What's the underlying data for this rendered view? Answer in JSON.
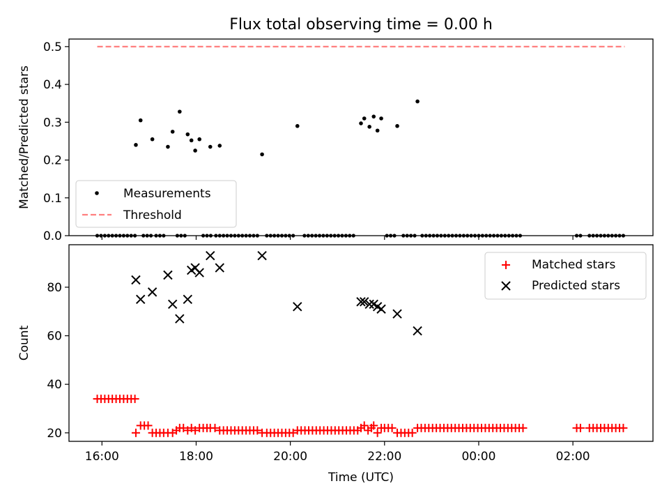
{
  "figure_title": "Flux total observing time = 0.00 h",
  "x_axis": {
    "label": "Time (UTC)",
    "tick_values": [
      16,
      18,
      20,
      22,
      24,
      26
    ],
    "tick_labels": [
      "16:00",
      "18:00",
      "20:00",
      "22:00",
      "00:00",
      "02:00"
    ]
  },
  "colors": {
    "matched": "#ff0000",
    "predicted": "#000000",
    "threshold": "#ff7f7f",
    "measurement": "#000000"
  },
  "chart_data": [
    {
      "type": "scatter",
      "ylabel": "Matched/Predicted stars",
      "xlim": [
        15.3,
        27.7
      ],
      "ylim": [
        0,
        0.52
      ],
      "y_ticks": [
        0.0,
        0.1,
        0.2,
        0.3,
        0.4,
        0.5
      ],
      "y_tick_labels": [
        "0.0",
        "0.1",
        "0.2",
        "0.3",
        "0.4",
        "0.5"
      ],
      "legend": {
        "placement": "lower-left",
        "entries": [
          {
            "label": "Measurements",
            "marker": "dot"
          },
          {
            "label": "Threshold",
            "marker": "dashed-line"
          }
        ]
      },
      "threshold": {
        "y": 0.5,
        "x_range": [
          15.9,
          27.1
        ]
      },
      "series": [
        {
          "name": "Measurements",
          "points": [
            [
              16.72,
              0.24
            ],
            [
              16.82,
              0.305
            ],
            [
              17.07,
              0.255
            ],
            [
              17.4,
              0.235
            ],
            [
              17.5,
              0.275
            ],
            [
              17.65,
              0.328
            ],
            [
              17.82,
              0.268
            ],
            [
              17.9,
              0.252
            ],
            [
              17.98,
              0.225
            ],
            [
              18.07,
              0.255
            ],
            [
              18.3,
              0.235
            ],
            [
              18.5,
              0.238
            ],
            [
              19.4,
              0.215
            ],
            [
              20.15,
              0.29
            ],
            [
              21.5,
              0.297
            ],
            [
              21.57,
              0.31
            ],
            [
              21.68,
              0.288
            ],
            [
              21.77,
              0.315
            ],
            [
              21.85,
              0.278
            ],
            [
              21.93,
              0.31
            ],
            [
              22.27,
              0.29
            ],
            [
              22.7,
              0.355
            ]
          ],
          "zero_x": [
            15.9,
            15.98,
            16.06,
            16.14,
            16.22,
            16.3,
            16.38,
            16.46,
            16.54,
            16.62,
            16.7,
            16.88,
            16.96,
            17.04,
            17.15,
            17.23,
            17.31,
            17.6,
            17.68,
            17.76,
            18.15,
            18.23,
            18.31,
            18.42,
            18.5,
            18.58,
            18.66,
            18.74,
            18.82,
            18.9,
            18.98,
            19.06,
            19.14,
            19.22,
            19.3,
            19.5,
            19.58,
            19.66,
            19.74,
            19.82,
            19.9,
            19.98,
            20.06,
            20.3,
            20.38,
            20.46,
            20.54,
            20.62,
            20.7,
            20.78,
            20.86,
            20.94,
            21.02,
            21.1,
            21.18,
            21.26,
            21.34,
            22.05,
            22.13,
            22.21,
            22.4,
            22.48,
            22.56,
            22.64,
            22.8,
            22.88,
            22.96,
            23.04,
            23.12,
            23.2,
            23.28,
            23.36,
            23.44,
            23.52,
            23.6,
            23.68,
            23.76,
            23.84,
            23.92,
            24.0,
            24.08,
            24.16,
            24.24,
            24.32,
            24.4,
            24.48,
            24.56,
            24.64,
            24.72,
            24.8,
            24.88,
            26.08,
            26.16,
            26.35,
            26.43,
            26.51,
            26.59,
            26.67,
            26.75,
            26.83,
            26.91,
            26.99,
            27.07
          ]
        }
      ]
    },
    {
      "type": "scatter",
      "ylabel": "Count",
      "xlim": [
        15.3,
        27.7
      ],
      "ylim": [
        16.5,
        97.5
      ],
      "y_ticks": [
        20,
        40,
        60,
        80
      ],
      "y_tick_labels": [
        "20",
        "40",
        "60",
        "80"
      ],
      "legend": {
        "placement": "upper-right",
        "entries": [
          {
            "label": "Matched stars",
            "marker": "plus"
          },
          {
            "label": "Predicted stars",
            "marker": "x"
          }
        ]
      },
      "series": [
        {
          "name": "Matched stars",
          "points": [
            [
              15.9,
              34
            ],
            [
              15.98,
              34
            ],
            [
              16.06,
              34
            ],
            [
              16.14,
              34
            ],
            [
              16.22,
              34
            ],
            [
              16.3,
              34
            ],
            [
              16.38,
              34
            ],
            [
              16.46,
              34
            ],
            [
              16.54,
              34
            ],
            [
              16.62,
              34
            ],
            [
              16.7,
              34
            ],
            [
              16.72,
              20
            ],
            [
              16.82,
              23
            ],
            [
              16.9,
              23
            ],
            [
              16.98,
              23
            ],
            [
              17.07,
              20
            ],
            [
              17.15,
              20
            ],
            [
              17.23,
              20
            ],
            [
              17.31,
              20
            ],
            [
              17.4,
              20
            ],
            [
              17.5,
              20
            ],
            [
              17.58,
              21
            ],
            [
              17.65,
              22
            ],
            [
              17.73,
              22
            ],
            [
              17.82,
              21
            ],
            [
              17.9,
              22
            ],
            [
              17.98,
              21
            ],
            [
              18.07,
              22
            ],
            [
              18.15,
              22
            ],
            [
              18.23,
              22
            ],
            [
              18.3,
              22
            ],
            [
              18.4,
              22
            ],
            [
              18.5,
              21
            ],
            [
              18.58,
              21
            ],
            [
              18.66,
              21
            ],
            [
              18.74,
              21
            ],
            [
              18.82,
              21
            ],
            [
              18.9,
              21
            ],
            [
              18.98,
              21
            ],
            [
              19.06,
              21
            ],
            [
              19.14,
              21
            ],
            [
              19.22,
              21
            ],
            [
              19.3,
              21
            ],
            [
              19.4,
              20
            ],
            [
              19.5,
              20
            ],
            [
              19.58,
              20
            ],
            [
              19.66,
              20
            ],
            [
              19.74,
              20
            ],
            [
              19.82,
              20
            ],
            [
              19.9,
              20
            ],
            [
              19.98,
              20
            ],
            [
              20.06,
              20
            ],
            [
              20.15,
              21
            ],
            [
              20.23,
              21
            ],
            [
              20.31,
              21
            ],
            [
              20.39,
              21
            ],
            [
              20.47,
              21
            ],
            [
              20.55,
              21
            ],
            [
              20.63,
              21
            ],
            [
              20.71,
              21
            ],
            [
              20.79,
              21
            ],
            [
              20.87,
              21
            ],
            [
              20.95,
              21
            ],
            [
              21.03,
              21
            ],
            [
              21.11,
              21
            ],
            [
              21.19,
              21
            ],
            [
              21.27,
              21
            ],
            [
              21.35,
              21
            ],
            [
              21.43,
              21
            ],
            [
              21.5,
              22
            ],
            [
              21.57,
              23
            ],
            [
              21.65,
              21
            ],
            [
              21.72,
              22
            ],
            [
              21.77,
              23
            ],
            [
              21.85,
              20
            ],
            [
              21.93,
              22
            ],
            [
              22.0,
              22
            ],
            [
              22.08,
              22
            ],
            [
              22.16,
              22
            ],
            [
              22.27,
              20
            ],
            [
              22.35,
              20
            ],
            [
              22.43,
              20
            ],
            [
              22.51,
              20
            ],
            [
              22.59,
              20
            ],
            [
              22.7,
              22
            ],
            [
              22.78,
              22
            ],
            [
              22.86,
              22
            ],
            [
              22.94,
              22
            ],
            [
              23.02,
              22
            ],
            [
              23.1,
              22
            ],
            [
              23.18,
              22
            ],
            [
              23.26,
              22
            ],
            [
              23.34,
              22
            ],
            [
              23.42,
              22
            ],
            [
              23.5,
              22
            ],
            [
              23.58,
              22
            ],
            [
              23.66,
              22
            ],
            [
              23.74,
              22
            ],
            [
              23.82,
              22
            ],
            [
              23.9,
              22
            ],
            [
              23.98,
              22
            ],
            [
              24.06,
              22
            ],
            [
              24.14,
              22
            ],
            [
              24.22,
              22
            ],
            [
              24.3,
              22
            ],
            [
              24.38,
              22
            ],
            [
              24.46,
              22
            ],
            [
              24.54,
              22
            ],
            [
              24.62,
              22
            ],
            [
              24.7,
              22
            ],
            [
              24.78,
              22
            ],
            [
              24.86,
              22
            ],
            [
              24.94,
              22
            ],
            [
              26.08,
              22
            ],
            [
              26.16,
              22
            ],
            [
              26.35,
              22
            ],
            [
              26.43,
              22
            ],
            [
              26.51,
              22
            ],
            [
              26.59,
              22
            ],
            [
              26.67,
              22
            ],
            [
              26.75,
              22
            ],
            [
              26.83,
              22
            ],
            [
              26.91,
              22
            ],
            [
              26.99,
              22
            ],
            [
              27.07,
              22
            ]
          ]
        },
        {
          "name": "Predicted stars",
          "points": [
            [
              16.72,
              83
            ],
            [
              16.82,
              75
            ],
            [
              17.07,
              78
            ],
            [
              17.4,
              85
            ],
            [
              17.5,
              73
            ],
            [
              17.65,
              67
            ],
            [
              17.82,
              75
            ],
            [
              17.9,
              87
            ],
            [
              17.98,
              88
            ],
            [
              18.07,
              86
            ],
            [
              18.3,
              93
            ],
            [
              18.5,
              88
            ],
            [
              19.4,
              93
            ],
            [
              20.15,
              72
            ],
            [
              21.5,
              74
            ],
            [
              21.57,
              74
            ],
            [
              21.68,
              73
            ],
            [
              21.77,
              73
            ],
            [
              21.85,
              72
            ],
            [
              21.93,
              71
            ],
            [
              22.27,
              69
            ],
            [
              22.7,
              62
            ]
          ]
        }
      ]
    }
  ]
}
